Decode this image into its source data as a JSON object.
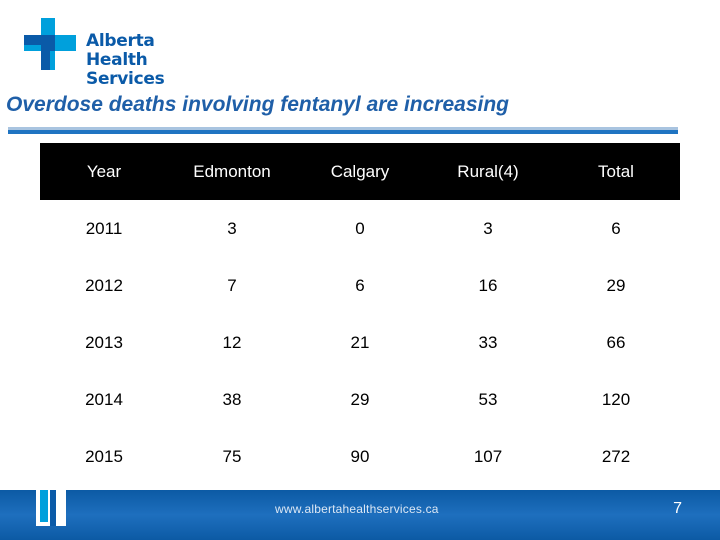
{
  "brand": {
    "line1": "Alberta Health",
    "line2": "Services",
    "logo_icon": "ahs-cross-logo-icon",
    "primary_color": "#0a5aa8",
    "accent_color": "#00a0dc"
  },
  "slide": {
    "title": "Overdose deaths involving fentanyl are increasing",
    "page_number": "7"
  },
  "table": {
    "headers": [
      "Year",
      "Edmonton",
      "Calgary",
      "Rural(4)",
      "Total"
    ],
    "rows": [
      [
        "2011",
        "3",
        "0",
        "3",
        "6"
      ],
      [
        "2012",
        "7",
        "6",
        "16",
        "29"
      ],
      [
        "2013",
        "12",
        "21",
        "33",
        "66"
      ],
      [
        "2014",
        "38",
        "29",
        "53",
        "120"
      ],
      [
        "2015",
        "75",
        "90",
        "107",
        "272"
      ]
    ]
  },
  "footer": {
    "url": "www.albertahealthservices.ca",
    "background_color": "#1e6fbe"
  }
}
